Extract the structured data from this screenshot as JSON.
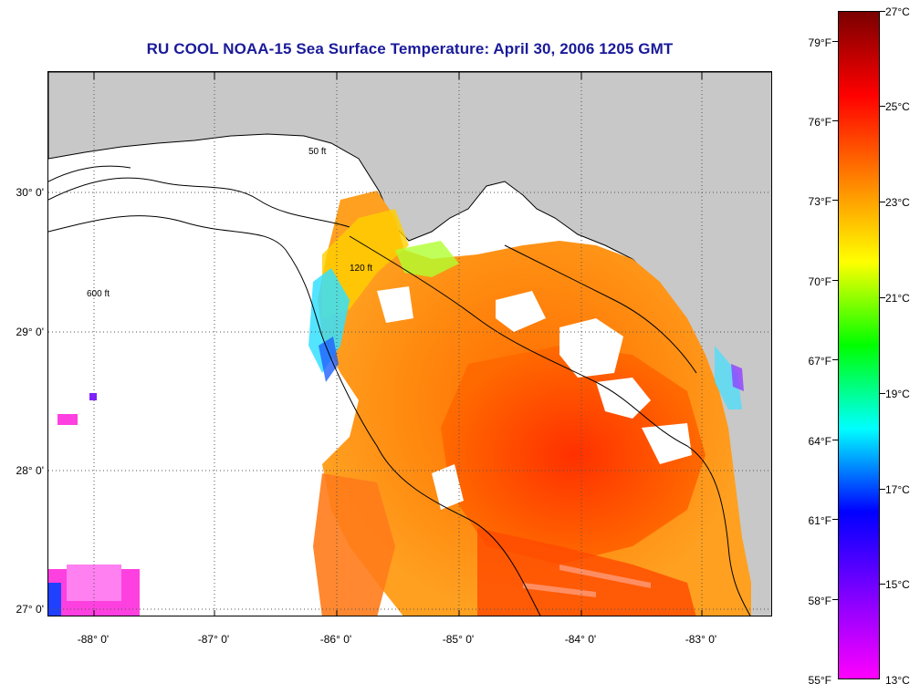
{
  "map": {
    "title": "RU COOL  NOAA-15  Sea Surface Temperature:  April 30, 2006 1205 GMT",
    "latitude_labels": [
      "30° 0'",
      "29° 0'",
      "28° 0'",
      "27° 0'"
    ],
    "longitude_labels": [
      "-88° 0'",
      "-87° 0'",
      "-86° 0'",
      "-85° 0'",
      "-84° 0'",
      "-83° 0'"
    ],
    "contour_labels": [
      "50 ft",
      "120 ft",
      "600 ft"
    ],
    "land_color": "#c8c8c8",
    "no_data_color": "#ffffff"
  },
  "colorbar": {
    "fahrenheit_labels": [
      "79°F",
      "76°F",
      "73°F",
      "70°F",
      "67°F",
      "64°F",
      "61°F",
      "58°F",
      "55°F"
    ],
    "celsius_labels": [
      "27°C",
      "25°C",
      "23°C",
      "21°C",
      "19°C",
      "17°C",
      "15°C",
      "13°C"
    ],
    "gradient_colors": [
      "#7a0000",
      "#ff0000",
      "#ff8000",
      "#ffff00",
      "#00ff00",
      "#00ffff",
      "#0000ff",
      "#8000ff",
      "#ff00ff"
    ]
  }
}
